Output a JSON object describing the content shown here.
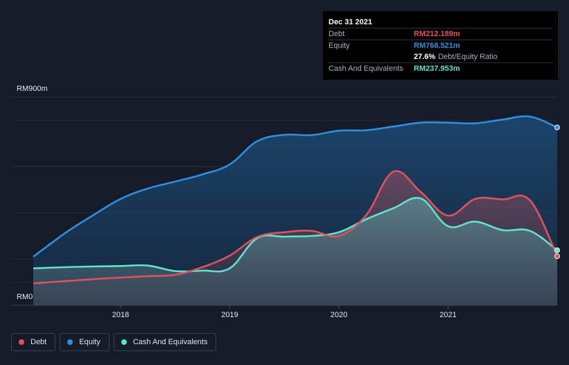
{
  "chart_data": {
    "type": "area",
    "currency": "RM",
    "y_max_label": "RM900m",
    "y_min_label": "RM0",
    "ylim": [
      0,
      900
    ],
    "x_ticks": [
      "2018",
      "2019",
      "2020",
      "2021"
    ],
    "x_tick_values": [
      2018.0,
      2019.0,
      2020.0,
      2021.0
    ],
    "xlim": [
      2017.2,
      2022.0
    ],
    "series": [
      {
        "name": "Debt",
        "color": "#e0505f",
        "x": [
          2017.2,
          2017.5,
          2017.75,
          2018.0,
          2018.25,
          2018.5,
          2018.75,
          2019.0,
          2019.25,
          2019.5,
          2019.75,
          2020.0,
          2020.25,
          2020.5,
          2020.75,
          2021.0,
          2021.25,
          2021.5,
          2021.75,
          2022.0
        ],
        "values": [
          95,
          105,
          113,
          120,
          126,
          132,
          165,
          215,
          295,
          316,
          322,
          300,
          390,
          578,
          490,
          388,
          460,
          458,
          454,
          212
        ]
      },
      {
        "name": "Equity",
        "color": "#2e8fe0",
        "x": [
          2017.2,
          2017.5,
          2017.75,
          2018.0,
          2018.25,
          2018.5,
          2018.75,
          2019.0,
          2019.25,
          2019.5,
          2019.75,
          2020.0,
          2020.25,
          2020.5,
          2020.75,
          2021.0,
          2021.25,
          2021.5,
          2021.75,
          2022.0
        ],
        "values": [
          210,
          315,
          390,
          460,
          505,
          535,
          566,
          609,
          709,
          737,
          736,
          755,
          757,
          773,
          790,
          790,
          787,
          803,
          816,
          769
        ]
      },
      {
        "name": "Cash And Equivalents",
        "color": "#5fe3cf",
        "x": [
          2017.2,
          2017.5,
          2017.75,
          2018.0,
          2018.25,
          2018.5,
          2018.75,
          2019.0,
          2019.25,
          2019.5,
          2019.75,
          2020.0,
          2020.25,
          2020.5,
          2020.75,
          2021.0,
          2021.25,
          2021.5,
          2021.75,
          2022.0
        ],
        "values": [
          160,
          165,
          168,
          170,
          172,
          148,
          150,
          160,
          290,
          297,
          300,
          316,
          372,
          420,
          462,
          342,
          362,
          325,
          322,
          238
        ]
      }
    ]
  },
  "tooltip": {
    "date": "Dec 31 2021",
    "debt_label": "Debt",
    "debt_value": "RM212.189m",
    "equity_label": "Equity",
    "equity_value": "RM768.521m",
    "ratio_value": "27.6%",
    "ratio_label": "Debt/Equity Ratio",
    "cash_label": "Cash And Equivalents",
    "cash_value": "RM237.953m"
  },
  "legend": [
    {
      "label": "Debt",
      "color": "#e0505f"
    },
    {
      "label": "Equity",
      "color": "#2e8fe0"
    },
    {
      "label": "Cash And Equivalents",
      "color": "#5fe3cf"
    }
  ]
}
